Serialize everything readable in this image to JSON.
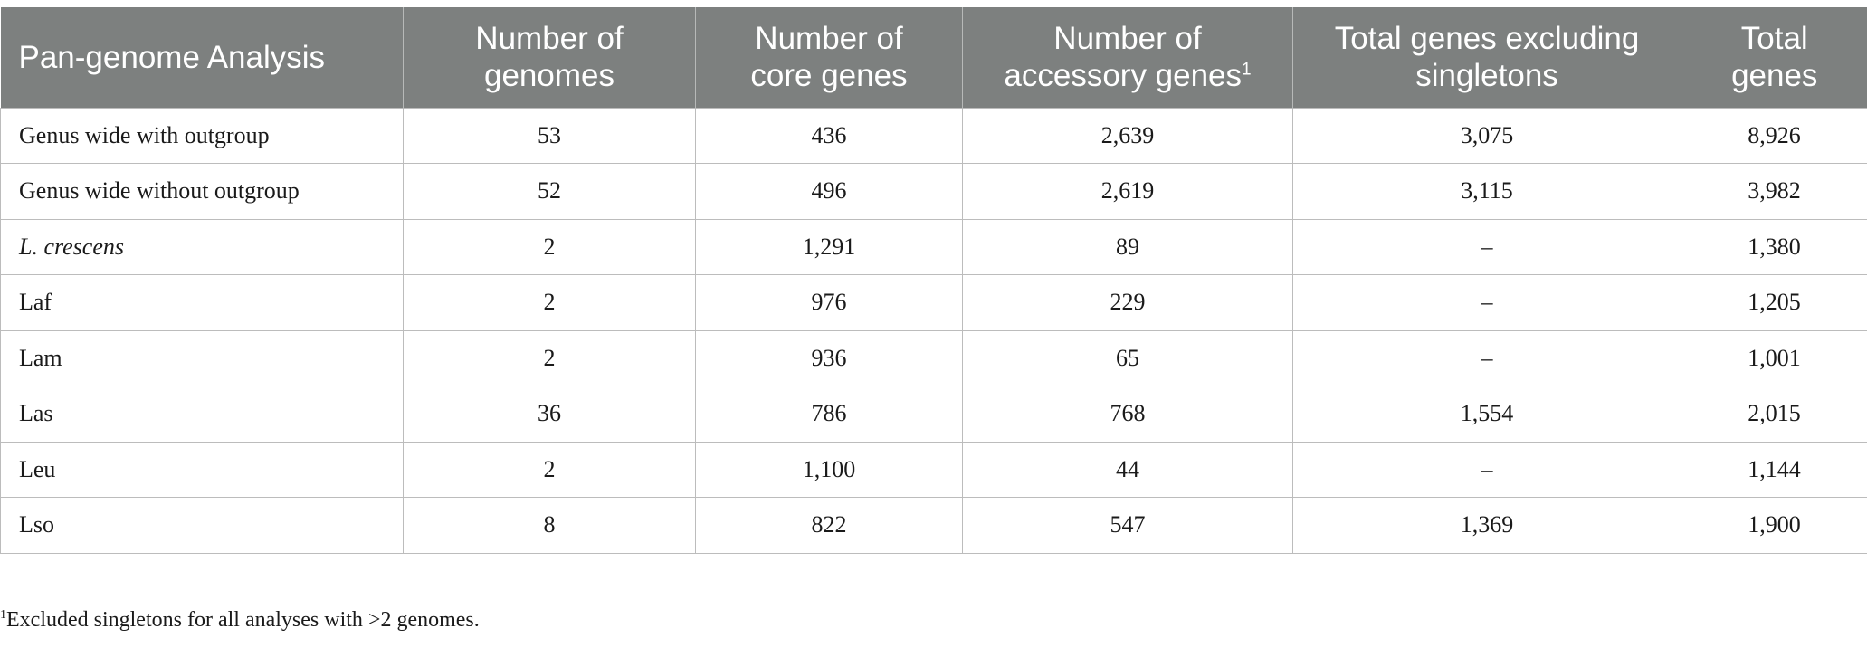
{
  "table": {
    "headers": [
      {
        "line1": "Pan-genome Analysis",
        "line2": ""
      },
      {
        "line1": "Number of",
        "line2": "genomes"
      },
      {
        "line1": "Number of",
        "line2": "core genes"
      },
      {
        "line1": "Number of",
        "line2": "accessory genes",
        "sup": "1"
      },
      {
        "line1": "Total genes excluding",
        "line2": "singletons"
      },
      {
        "line1": "Total",
        "line2": "genes"
      }
    ],
    "rows": [
      {
        "analysis": "Genus wide with outgroup",
        "genomes": "53",
        "core": "436",
        "accessory": "2,639",
        "excl_singletons": "3,075",
        "total": "8,926"
      },
      {
        "analysis": "Genus wide without outgroup",
        "genomes": "52",
        "core": "496",
        "accessory": "2,619",
        "excl_singletons": "3,115",
        "total": "3,982"
      },
      {
        "analysis": "L. crescens",
        "genomes": "2",
        "core": "1,291",
        "accessory": "89",
        "excl_singletons": "–",
        "total": "1,380"
      },
      {
        "analysis": "Laf",
        "genomes": "2",
        "core": "976",
        "accessory": "229",
        "excl_singletons": "–",
        "total": "1,205"
      },
      {
        "analysis": "Lam",
        "genomes": "2",
        "core": "936",
        "accessory": "65",
        "excl_singletons": "–",
        "total": "1,001"
      },
      {
        "analysis": "Las",
        "genomes": "36",
        "core": "786",
        "accessory": "768",
        "excl_singletons": "1,554",
        "total": "2,015"
      },
      {
        "analysis": "Leu",
        "genomes": "2",
        "core": "1,100",
        "accessory": "44",
        "excl_singletons": "–",
        "total": "1,144"
      },
      {
        "analysis": "Lso",
        "genomes": "8",
        "core": "822",
        "accessory": "547",
        "excl_singletons": "1,369",
        "total": "1,900"
      }
    ]
  },
  "footnote": {
    "marker": "1",
    "text": "Excluded singletons for all analyses with >2 genomes."
  }
}
